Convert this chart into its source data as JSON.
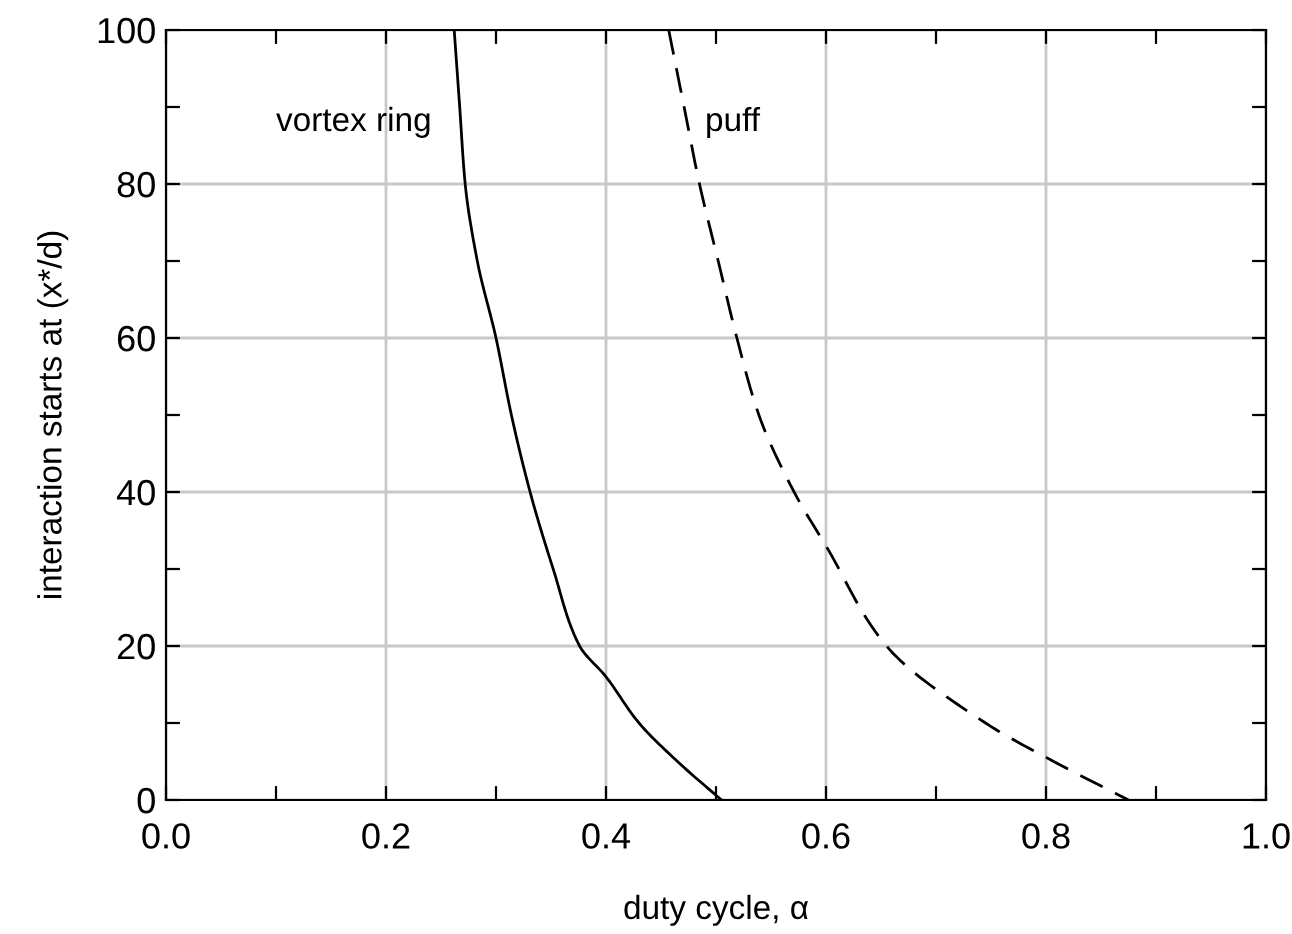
{
  "chart_data": {
    "type": "line",
    "xlabel": "duty cycle, α",
    "ylabel": "interaction starts at (x*/d)",
    "xlim": [
      0,
      1
    ],
    "ylim": [
      0,
      100
    ],
    "xticks": [
      {
        "value": 0,
        "label": "0.0"
      },
      {
        "value": 0.1,
        "label": null
      },
      {
        "value": 0.2,
        "label": "0.2"
      },
      {
        "value": 0.3,
        "label": null
      },
      {
        "value": 0.4,
        "label": "0.4"
      },
      {
        "value": 0.5,
        "label": null
      },
      {
        "value": 0.6,
        "label": "0.6"
      },
      {
        "value": 0.7,
        "label": null
      },
      {
        "value": 0.8,
        "label": "0.8"
      },
      {
        "value": 0.9,
        "label": null
      },
      {
        "value": 1,
        "label": "1.0"
      }
    ],
    "yticks": [
      0,
      {
        "value": 10,
        "label": null
      },
      20,
      {
        "value": 30,
        "label": null
      },
      40,
      {
        "value": 50,
        "label": null
      },
      60,
      {
        "value": 70,
        "label": null
      },
      80,
      {
        "value": 90,
        "label": null
      },
      100
    ],
    "grid": true,
    "marker": "none",
    "series": [
      {
        "color": "#000000",
        "line_style": "solid",
        "x": [
          0.262,
          0.267,
          0.272,
          0.283,
          0.3,
          0.314,
          0.331,
          0.352,
          0.376,
          0.4,
          0.43,
          0.465,
          0.505
        ],
        "values": [
          100,
          90,
          80,
          70,
          60,
          50,
          40,
          30,
          20,
          16,
          10,
          5,
          0
        ]
      },
      {
        "color": "#000000",
        "line_style": "dashed",
        "x": [
          0.457,
          0.471,
          0.485,
          0.502,
          0.519,
          0.539,
          0.571,
          0.6,
          0.655,
          0.745,
          0.807,
          0.875
        ],
        "values": [
          100,
          90,
          80,
          70,
          60,
          50,
          40,
          33,
          20,
          10,
          5,
          0
        ]
      }
    ],
    "annotations": [
      "vortex ring",
      "puff"
    ]
  }
}
